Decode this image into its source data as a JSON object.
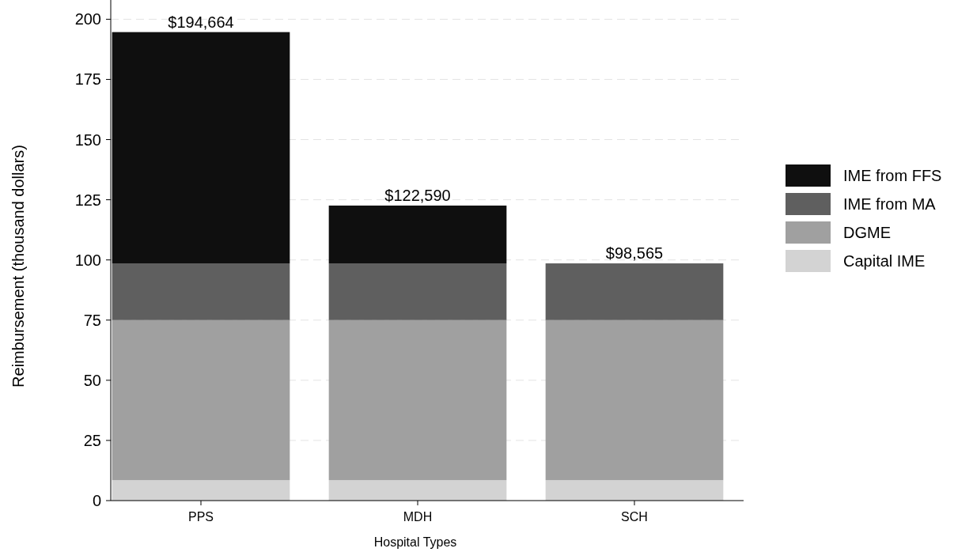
{
  "chart_data": {
    "type": "bar",
    "stacked": true,
    "xlabel": "Hospital Types",
    "ylabel": "Reimbursement (thousand dollars)",
    "categories": [
      "PPS",
      "MDH",
      "SCH"
    ],
    "series": [
      {
        "name": "Capital IME",
        "color": "#d3d3d3",
        "values": [
          8.5,
          8.5,
          8.5
        ]
      },
      {
        "name": "DGME",
        "color": "#a0a0a0",
        "values": [
          66.5,
          66.5,
          66.5
        ]
      },
      {
        "name": "IME from MA",
        "color": "#5f5f5f",
        "values": [
          23.565,
          23.565,
          23.565
        ]
      },
      {
        "name": "IME from FFS",
        "color": "#0f0f0f",
        "values": [
          96.099,
          24.025,
          0
        ]
      }
    ],
    "totals": [
      "$194,664",
      "$122,590",
      "$98,565"
    ],
    "ylim": [
      0,
      208
    ],
    "yticks": [
      0,
      25,
      50,
      75,
      100,
      125,
      150,
      175,
      200
    ],
    "grid": "y",
    "legend": "right"
  }
}
